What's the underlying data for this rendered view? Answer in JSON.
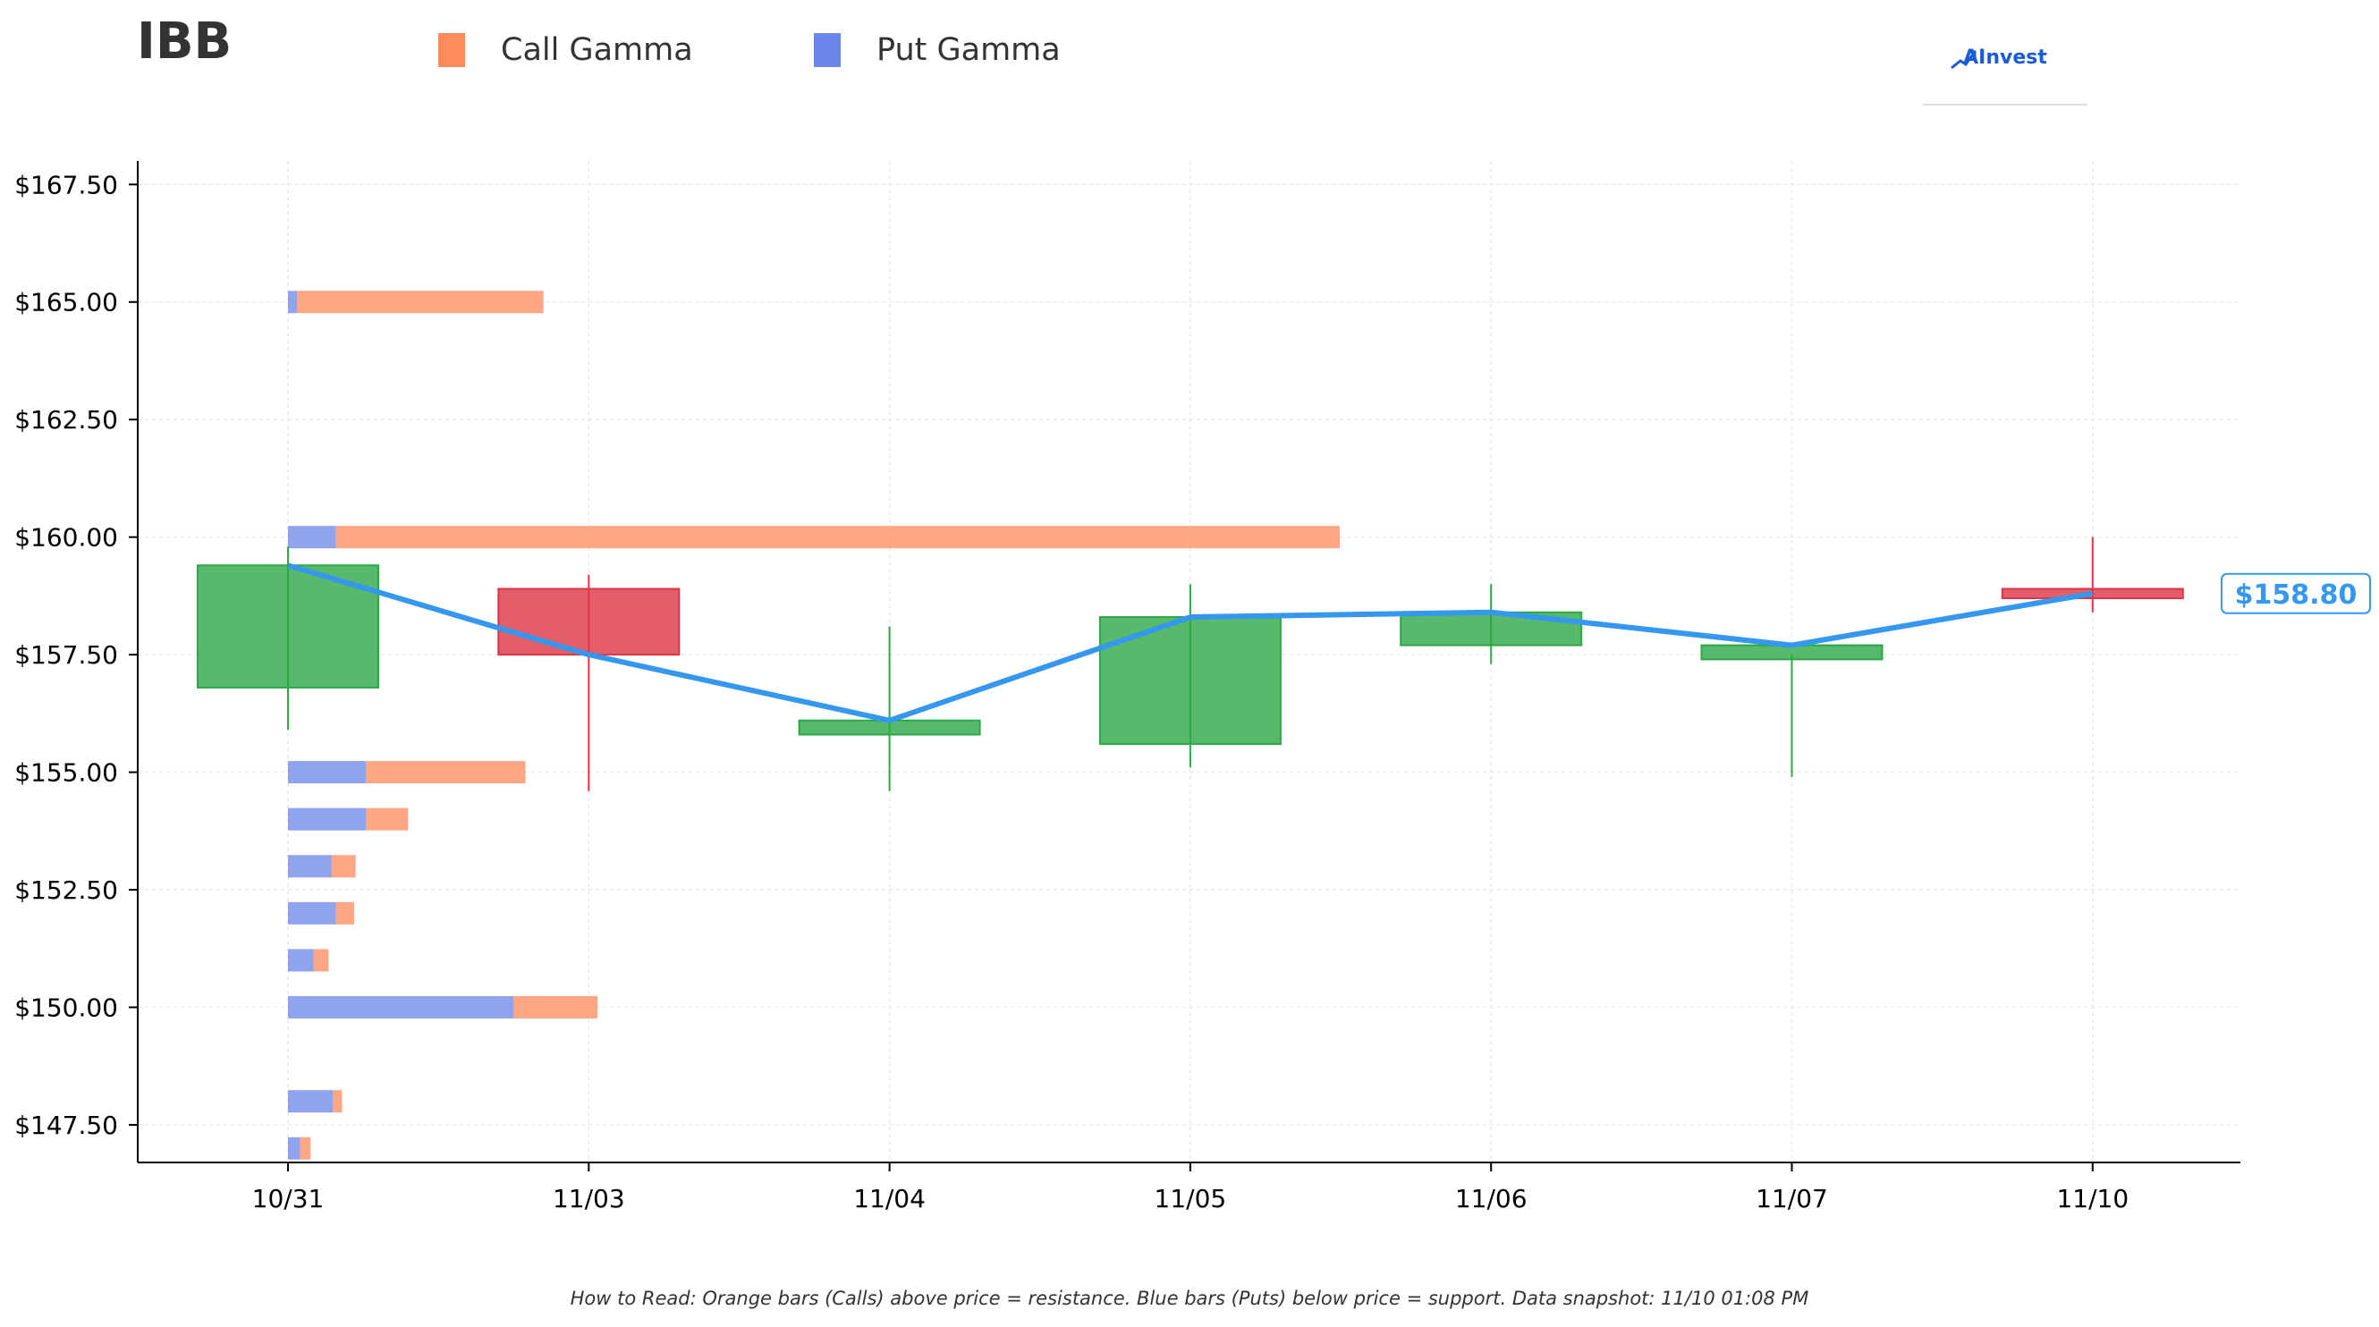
{
  "header": {
    "ticker": "IBB",
    "brand": "AInvest",
    "footnote": "How to Read: Orange bars (Calls) above price = resistance. Blue bars (Puts) below price = support. Data snapshot: 11/10 01:08 PM"
  },
  "legend": {
    "call_label": "Call Gamma",
    "put_label": "Put Gamma"
  },
  "colors": {
    "call": "#ff8a5b",
    "put": "#6b86e8",
    "up": "#2ca846",
    "down": "#dc3545",
    "price_line": "#3597ed",
    "axis": "#000000",
    "grid": "#e9e9e9"
  },
  "chart_data": [
    {
      "type": "candlestick",
      "categories": [
        "10/31",
        "11/03",
        "11/04",
        "11/05",
        "11/06",
        "11/07",
        "11/10"
      ],
      "ylim": [
        146.7,
        168.0
      ],
      "yticks": [
        147.5,
        150.0,
        152.5,
        155.0,
        157.5,
        160.0,
        162.5,
        165.0,
        167.5
      ],
      "ytick_labels": [
        "$147.50",
        "$150.00",
        "$152.50",
        "$155.00",
        "$157.50",
        "$160.00",
        "$162.50",
        "$165.00",
        "$167.50"
      ],
      "grid": true,
      "series": [
        {
          "kind": "ohlc",
          "open": [
            156.8,
            158.9,
            155.8,
            155.6,
            157.7,
            157.4,
            158.9
          ],
          "high": [
            159.8,
            159.2,
            158.1,
            159.0,
            159.0,
            157.5,
            160.0
          ],
          "low": [
            155.9,
            154.6,
            154.6,
            155.1,
            157.3,
            154.9,
            158.4
          ],
          "close": [
            159.4,
            157.5,
            156.1,
            158.3,
            158.4,
            157.7,
            158.7
          ]
        },
        {
          "kind": "line",
          "values": [
            159.4,
            157.5,
            156.1,
            158.3,
            158.4,
            157.7,
            158.8
          ]
        }
      ],
      "last_price_label": "$158.80"
    },
    {
      "type": "bar",
      "orientation": "horizontal",
      "series_order": [
        "Put Gamma",
        "Call Gamma"
      ],
      "stacked": true,
      "strikes": [
        165.0,
        160.0,
        155.0,
        154.0,
        153.0,
        152.0,
        151.0,
        150.0,
        148.0,
        147.0
      ],
      "put_gamma": [
        0.3,
        1.6,
        2.6,
        2.6,
        1.45,
        1.6,
        0.85,
        7.5,
        1.5,
        0.4
      ],
      "call_gamma": [
        8.2,
        33.4,
        5.3,
        1.4,
        0.8,
        0.6,
        0.5,
        2.8,
        0.3,
        0.35
      ]
    }
  ]
}
